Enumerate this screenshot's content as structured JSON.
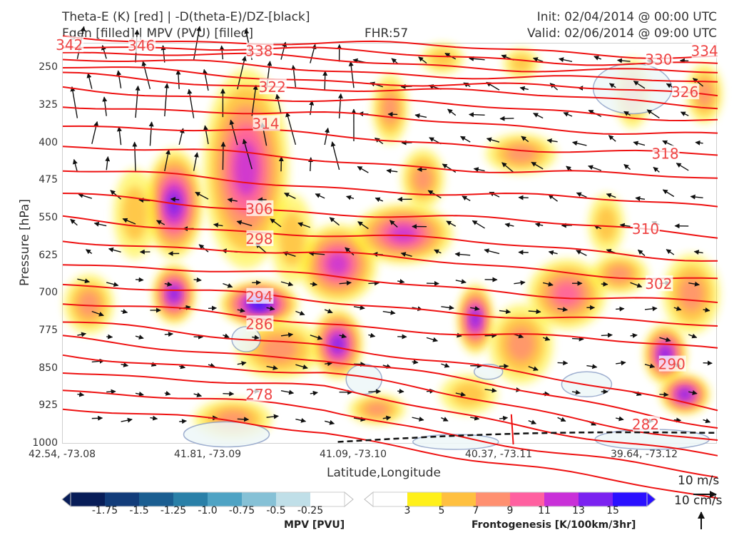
{
  "header": {
    "title_left_1": "Theta-E (K) [red] | -D(theta-E)/DZ-[black]",
    "title_left_2": "Fgen [filled] | MPV (PVU) [filled]",
    "fhr": "FHR:57",
    "init": "Init: 02/04/2014 @ 00:00 UTC",
    "valid": "Valid: 02/06/2014 @ 09:00 UTC"
  },
  "chart_data": {
    "type": "cross-section",
    "xlabel": "Latitude,Longitude",
    "ylabel": "Pressure [hPa]",
    "x_ticks": [
      "42.54, -73.08",
      "41.81, -73.09",
      "41.09, -73.10",
      "40.37, -73.11",
      "39.64, -73.12"
    ],
    "y_ticks": [
      250,
      325,
      400,
      475,
      550,
      625,
      700,
      775,
      850,
      925,
      1000
    ],
    "ylim": [
      1000,
      200
    ],
    "y_scale": "linear-inverted",
    "theta_e_labels": [
      {
        "value": "342",
        "x": 0.01,
        "y": 203
      },
      {
        "value": "346",
        "x": 0.12,
        "y": 204
      },
      {
        "value": "338",
        "x": 0.3,
        "y": 215
      },
      {
        "value": "334",
        "x": 0.98,
        "y": 215
      },
      {
        "value": "330",
        "x": 0.91,
        "y": 232
      },
      {
        "value": "326",
        "x": 0.95,
        "y": 297
      },
      {
        "value": "322",
        "x": 0.32,
        "y": 287
      },
      {
        "value": "318",
        "x": 0.92,
        "y": 420
      },
      {
        "value": "314",
        "x": 0.31,
        "y": 360
      },
      {
        "value": "310",
        "x": 0.89,
        "y": 570
      },
      {
        "value": "306",
        "x": 0.3,
        "y": 530
      },
      {
        "value": "302",
        "x": 0.91,
        "y": 680
      },
      {
        "value": "298",
        "x": 0.3,
        "y": 590
      },
      {
        "value": "294",
        "x": 0.3,
        "y": 705
      },
      {
        "value": "290",
        "x": 0.93,
        "y": 840
      },
      {
        "value": "286",
        "x": 0.3,
        "y": 760
      },
      {
        "value": "282",
        "x": 0.89,
        "y": 960
      },
      {
        "value": "278",
        "x": 0.3,
        "y": 900
      }
    ],
    "mpv_colorbar": {
      "title": "MPV [PVU]",
      "ticks": [
        "-1.75",
        "-1.5",
        "-1.25",
        "-1.0",
        "-0.75",
        "-0.5",
        "-0.25"
      ],
      "colors": [
        "#081d58",
        "#123c7a",
        "#1b5e91",
        "#2a80a8",
        "#4fa3c4",
        "#86c1d6",
        "#c0dfe8",
        "#ffffff"
      ]
    },
    "fgen_colorbar": {
      "title": "Frontogenesis [K/100km/3hr]",
      "ticks": [
        "3",
        "5",
        "7",
        "9",
        "11",
        "13",
        "15"
      ],
      "colors": [
        "#ffffff",
        "#fff01a",
        "#ffc040",
        "#ff9070",
        "#ff60a0",
        "#c930d8",
        "#7b22f0",
        "#2a10ff"
      ]
    },
    "wind_key": {
      "horizontal": "10 m/s",
      "vertical": "10 cm/s"
    }
  }
}
